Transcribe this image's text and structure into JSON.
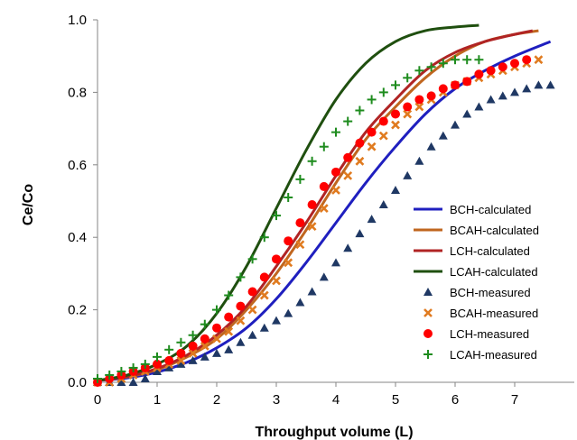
{
  "chart_data": {
    "type": "scatter",
    "title": "",
    "xlabel": "Throughput volume (L)",
    "ylabel": "Ce/Co",
    "xlim": [
      0,
      8
    ],
    "ylim": [
      0,
      1.0
    ],
    "x_ticks": [
      0,
      1,
      2,
      3,
      4,
      5,
      6,
      7
    ],
    "y_ticks": [
      0.0,
      0.2,
      0.4,
      0.6,
      0.8,
      1.0
    ],
    "y_tick_labels": [
      "0.0",
      "0.2",
      "0.4",
      "0.6",
      "0.8",
      "1.0"
    ],
    "grid": false,
    "legend_position": "right",
    "series": [
      {
        "name": "BCH-calculated",
        "kind": "line",
        "color": "#1f1fbf",
        "x": [
          0,
          0.5,
          1,
          1.5,
          2,
          2.5,
          3,
          3.5,
          4,
          4.5,
          5,
          5.5,
          6,
          6.5,
          7,
          7.6
        ],
        "y": [
          0.005,
          0.012,
          0.028,
          0.055,
          0.095,
          0.15,
          0.23,
          0.33,
          0.44,
          0.55,
          0.65,
          0.74,
          0.81,
          0.86,
          0.9,
          0.94
        ]
      },
      {
        "name": "BCAH-calculated",
        "kind": "line",
        "color": "#c0661f",
        "x": [
          0,
          0.5,
          1,
          1.5,
          2,
          2.5,
          3,
          3.5,
          4,
          4.5,
          5,
          5.5,
          6,
          6.5,
          7,
          7.4
        ],
        "y": [
          0.005,
          0.015,
          0.035,
          0.07,
          0.12,
          0.2,
          0.3,
          0.42,
          0.55,
          0.67,
          0.76,
          0.84,
          0.9,
          0.94,
          0.96,
          0.97
        ]
      },
      {
        "name": "LCH-calculated",
        "kind": "line",
        "color": "#b02424",
        "x": [
          0,
          0.5,
          1,
          1.5,
          2,
          2.5,
          3,
          3.5,
          4,
          4.5,
          5,
          5.5,
          6,
          6.5,
          7,
          7.3
        ],
        "y": [
          0.005,
          0.016,
          0.038,
          0.075,
          0.13,
          0.21,
          0.32,
          0.44,
          0.57,
          0.69,
          0.78,
          0.86,
          0.91,
          0.94,
          0.96,
          0.97
        ]
      },
      {
        "name": "LCAH-calculated",
        "kind": "line",
        "color": "#1f4f0f",
        "x": [
          0,
          0.5,
          1,
          1.5,
          2,
          2.5,
          3,
          3.5,
          4,
          4.5,
          5,
          5.5,
          6,
          6.4
        ],
        "y": [
          0.005,
          0.02,
          0.05,
          0.1,
          0.19,
          0.32,
          0.48,
          0.64,
          0.78,
          0.88,
          0.94,
          0.97,
          0.98,
          0.985
        ]
      },
      {
        "name": "BCH-measured",
        "kind": "marker",
        "marker": "triangle",
        "color": "#1f3864",
        "x": [
          0,
          0.2,
          0.4,
          0.6,
          0.8,
          1,
          1.2,
          1.4,
          1.6,
          1.8,
          2,
          2.2,
          2.4,
          2.6,
          2.8,
          3,
          3.2,
          3.4,
          3.6,
          3.8,
          4,
          4.2,
          4.4,
          4.6,
          4.8,
          5,
          5.2,
          5.4,
          5.6,
          5.8,
          6,
          6.2,
          6.4,
          6.6,
          6.8,
          7,
          7.2,
          7.4,
          7.6
        ],
        "y": [
          0.0,
          0.0,
          0.0,
          0.0,
          0.01,
          0.03,
          0.04,
          0.05,
          0.06,
          0.07,
          0.08,
          0.09,
          0.11,
          0.13,
          0.15,
          0.17,
          0.19,
          0.22,
          0.25,
          0.29,
          0.33,
          0.37,
          0.41,
          0.45,
          0.49,
          0.53,
          0.57,
          0.61,
          0.65,
          0.68,
          0.71,
          0.74,
          0.76,
          0.78,
          0.79,
          0.8,
          0.81,
          0.82,
          0.82
        ]
      },
      {
        "name": "BCAH-measured",
        "kind": "marker",
        "marker": "x",
        "color": "#e07b20",
        "x": [
          0,
          0.2,
          0.4,
          0.6,
          0.8,
          1,
          1.2,
          1.4,
          1.6,
          1.8,
          2,
          2.2,
          2.4,
          2.6,
          2.8,
          3,
          3.2,
          3.4,
          3.6,
          3.8,
          4,
          4.2,
          4.4,
          4.6,
          4.8,
          5,
          5.2,
          5.4,
          5.6,
          5.8,
          6,
          6.2,
          6.4,
          6.6,
          6.8,
          7,
          7.2,
          7.4
        ],
        "y": [
          0.0,
          0.0,
          0.01,
          0.02,
          0.03,
          0.04,
          0.05,
          0.06,
          0.08,
          0.1,
          0.12,
          0.14,
          0.17,
          0.2,
          0.24,
          0.28,
          0.33,
          0.38,
          0.43,
          0.48,
          0.53,
          0.57,
          0.61,
          0.65,
          0.68,
          0.71,
          0.74,
          0.76,
          0.78,
          0.8,
          0.82,
          0.83,
          0.84,
          0.85,
          0.86,
          0.87,
          0.88,
          0.89
        ]
      },
      {
        "name": "LCH-measured",
        "kind": "marker",
        "marker": "circle",
        "color": "#ff0000",
        "x": [
          0,
          0.2,
          0.4,
          0.6,
          0.8,
          1,
          1.2,
          1.4,
          1.6,
          1.8,
          2,
          2.2,
          2.4,
          2.6,
          2.8,
          3,
          3.2,
          3.4,
          3.6,
          3.8,
          4,
          4.2,
          4.4,
          4.6,
          4.8,
          5,
          5.2,
          5.4,
          5.6,
          5.8,
          6,
          6.2,
          6.4,
          6.6,
          6.8,
          7,
          7.2
        ],
        "y": [
          0.0,
          0.01,
          0.02,
          0.03,
          0.04,
          0.05,
          0.06,
          0.08,
          0.1,
          0.12,
          0.15,
          0.18,
          0.21,
          0.25,
          0.29,
          0.34,
          0.39,
          0.44,
          0.49,
          0.54,
          0.58,
          0.62,
          0.66,
          0.69,
          0.72,
          0.74,
          0.76,
          0.78,
          0.79,
          0.81,
          0.82,
          0.83,
          0.85,
          0.86,
          0.87,
          0.88,
          0.89
        ]
      },
      {
        "name": "LCAH-measured",
        "kind": "marker",
        "marker": "plus",
        "color": "#1e8c1e",
        "x": [
          0,
          0.2,
          0.4,
          0.6,
          0.8,
          1,
          1.2,
          1.4,
          1.6,
          1.8,
          2,
          2.2,
          2.4,
          2.6,
          2.8,
          3,
          3.2,
          3.4,
          3.6,
          3.8,
          4,
          4.2,
          4.4,
          4.6,
          4.8,
          5,
          5.2,
          5.4,
          5.6,
          5.8,
          6,
          6.2,
          6.4
        ],
        "y": [
          0.01,
          0.02,
          0.03,
          0.04,
          0.05,
          0.07,
          0.09,
          0.11,
          0.13,
          0.16,
          0.2,
          0.24,
          0.29,
          0.34,
          0.4,
          0.46,
          0.51,
          0.56,
          0.61,
          0.65,
          0.69,
          0.72,
          0.75,
          0.78,
          0.8,
          0.82,
          0.84,
          0.86,
          0.87,
          0.88,
          0.89,
          0.89,
          0.89
        ]
      }
    ]
  }
}
